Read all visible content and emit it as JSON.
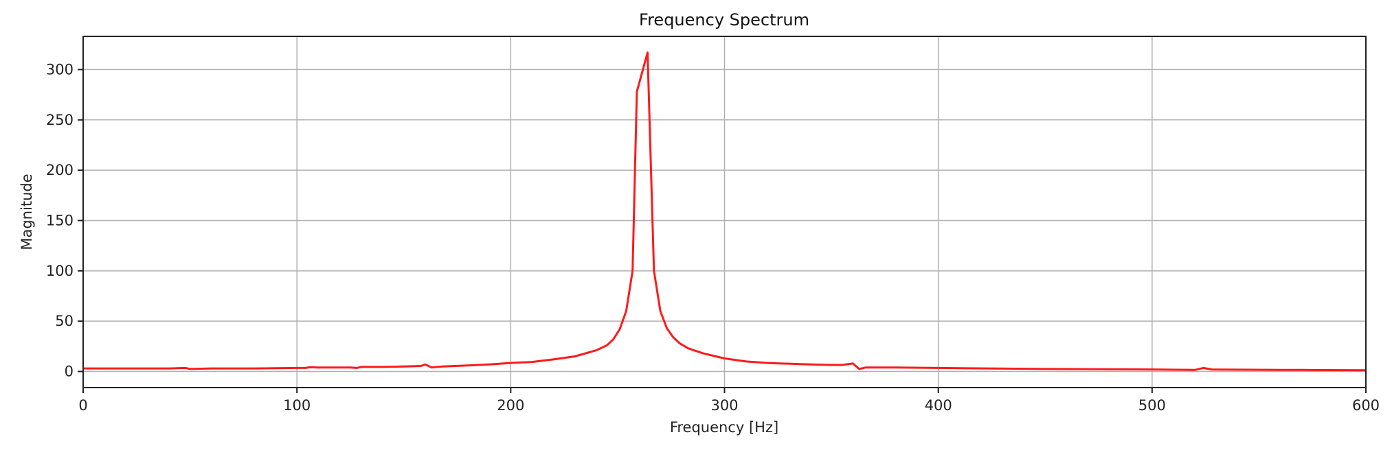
{
  "chart_data": {
    "type": "line",
    "title": "Frequency Spectrum",
    "xlabel": "Frequency [Hz]",
    "ylabel": "Magnitude",
    "xlim": [
      0,
      600
    ],
    "ylim": [
      -16,
      333
    ],
    "grid": true,
    "xticks": [
      0,
      100,
      200,
      300,
      400,
      500,
      600
    ],
    "xtick_labels": [
      "0",
      "100",
      "200",
      "300",
      "400",
      "500",
      "600"
    ],
    "yticks": [
      0,
      50,
      100,
      150,
      200,
      250,
      300
    ],
    "ytick_labels": [
      "0",
      "50",
      "100",
      "150",
      "200",
      "250",
      "300"
    ],
    "series": [
      {
        "name": "spectrum",
        "color": "#ff1a1a",
        "x": [
          0,
          20,
          40,
          48,
          50,
          60,
          80,
          100,
          104,
          106,
          110,
          125,
          128,
          130,
          140,
          150,
          158,
          160,
          163,
          168,
          180,
          190,
          200,
          210,
          220,
          230,
          240,
          245,
          248,
          251,
          254,
          257,
          259,
          264,
          267,
          270,
          273,
          276,
          279,
          283,
          290,
          300,
          310,
          320,
          340,
          350,
          355,
          360,
          363,
          366,
          380,
          400,
          450,
          500,
          520,
          524,
          528,
          560,
          570,
          600
        ],
        "y": [
          3,
          3,
          3,
          3.5,
          2.5,
          3,
          3,
          3.5,
          3.5,
          4.2,
          4,
          4,
          3.5,
          4.5,
          4.5,
          5,
          5.5,
          7,
          4,
          5,
          6,
          7,
          8.5,
          9.5,
          12,
          15,
          21,
          26,
          32,
          42,
          60,
          100,
          278,
          317,
          100,
          60,
          43,
          34,
          28,
          23,
          18,
          13,
          10,
          8.5,
          7,
          6.5,
          6.5,
          8,
          2.5,
          4,
          4,
          3.5,
          2.5,
          2,
          1.5,
          3.5,
          2,
          1.5,
          1.5,
          1.2
        ]
      }
    ]
  }
}
